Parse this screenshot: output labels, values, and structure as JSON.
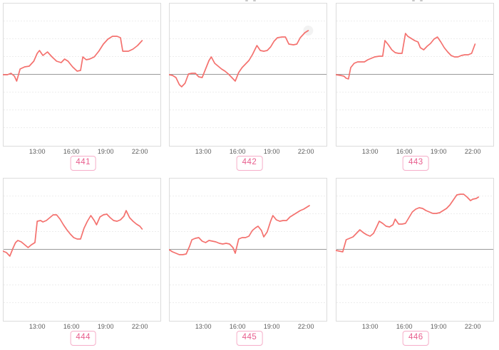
{
  "colors": {
    "background": "#ffffff",
    "line": "#f4716e",
    "zero_line": "#9a9a9a",
    "grid_line": "#ededed",
    "panel_border": "#dcdcdc",
    "tick_text": "#5c5c5c",
    "badge_text": "#e85d8d",
    "badge_border": "#f6aec9",
    "badge_bg": "#ffffff",
    "end_marker_halo": "#e9e9e9"
  },
  "x_axis": {
    "ticks": [
      "13:00",
      "16:00",
      "19:00",
      "22:00"
    ]
  },
  "chart_data": [
    {
      "type": "line",
      "badge": "441",
      "title": "",
      "x_ticks": [
        "13:00",
        "16:00",
        "19:00",
        "22:00"
      ],
      "x_range": [
        10.05,
        23.8
      ],
      "ylim": [
        -100,
        100
      ],
      "zero_line": true,
      "grid": true,
      "legend": "none",
      "end_marker": false,
      "x": [
        10.0,
        10.4,
        10.7,
        11.0,
        11.2,
        11.5,
        11.9,
        12.3,
        12.7,
        13.0,
        13.2,
        13.5,
        13.9,
        14.3,
        14.7,
        15.1,
        15.4,
        15.7,
        16.1,
        16.5,
        16.8,
        17.0,
        17.3,
        17.6,
        18.0,
        18.4,
        18.8,
        19.2,
        19.6,
        20.0,
        20.3,
        20.5,
        21.0,
        21.4,
        21.8,
        22.2
      ],
      "values": [
        0,
        0,
        2,
        -2,
        -9,
        8,
        11,
        12,
        19,
        30,
        34,
        27,
        32,
        25,
        19,
        17,
        22,
        19,
        11,
        5,
        6,
        25,
        21,
        22,
        25,
        33,
        43,
        50,
        54,
        54,
        52,
        33,
        33,
        36,
        41,
        48
      ]
    },
    {
      "type": "line",
      "badge": "442",
      "title": "",
      "x_ticks": [
        "13:00",
        "16:00",
        "19:00",
        "22:00"
      ],
      "x_range": [
        10.05,
        23.8
      ],
      "ylim": [
        -100,
        100
      ],
      "zero_line": true,
      "grid": true,
      "legend": "none",
      "end_marker": true,
      "x": [
        10.0,
        10.3,
        10.6,
        10.9,
        11.1,
        11.4,
        11.7,
        12.0,
        12.3,
        12.6,
        12.9,
        13.2,
        13.5,
        13.7,
        14.0,
        14.3,
        14.6,
        14.9,
        15.2,
        15.5,
        15.8,
        16.1,
        16.4,
        16.7,
        17.0,
        17.3,
        17.7,
        18.0,
        18.3,
        18.6,
        18.9,
        19.2,
        19.5,
        19.9,
        20.2,
        20.5,
        20.9,
        21.2,
        21.5,
        21.9,
        22.2
      ],
      "values": [
        0,
        -1,
        -4,
        -14,
        -17,
        -12,
        1,
        2,
        2,
        -3,
        -4,
        8,
        20,
        25,
        16,
        12,
        8,
        5,
        1,
        -4,
        -9,
        3,
        10,
        15,
        20,
        28,
        41,
        34,
        33,
        34,
        39,
        47,
        52,
        53,
        53,
        43,
        42,
        43,
        52,
        59,
        62
      ]
    },
    {
      "type": "line",
      "badge": "443",
      "title": "",
      "x_ticks": [
        "13:00",
        "16:00",
        "19:00",
        "22:00"
      ],
      "x_range": [
        10.05,
        23.8
      ],
      "ylim": [
        -100,
        100
      ],
      "zero_line": true,
      "grid": true,
      "legend": "none",
      "end_marker": false,
      "x": [
        10.0,
        10.4,
        10.7,
        10.9,
        11.1,
        11.3,
        11.6,
        11.9,
        12.2,
        12.5,
        12.8,
        13.1,
        13.4,
        13.8,
        14.1,
        14.3,
        14.6,
        14.9,
        15.2,
        15.5,
        15.8,
        16.1,
        16.3,
        16.6,
        16.9,
        17.2,
        17.4,
        17.7,
        18.0,
        18.3,
        18.6,
        18.9,
        19.2,
        19.5,
        19.8,
        20.1,
        20.4,
        20.7,
        21.0,
        21.3,
        21.6,
        21.9,
        22.2
      ],
      "values": [
        0,
        -1,
        -2,
        -5,
        -6,
        10,
        16,
        18,
        18,
        18,
        21,
        23,
        25,
        26,
        26,
        48,
        42,
        35,
        31,
        30,
        30,
        58,
        54,
        51,
        48,
        46,
        38,
        35,
        40,
        44,
        50,
        53,
        46,
        38,
        32,
        27,
        25,
        25,
        27,
        28,
        28,
        30,
        43
      ]
    },
    {
      "type": "line",
      "badge": "444",
      "title": "",
      "x_ticks": [
        "13:00",
        "16:00",
        "19:00",
        "22:00"
      ],
      "x_range": [
        10.05,
        23.8
      ],
      "ylim": [
        -100,
        100
      ],
      "zero_line": true,
      "grid": true,
      "legend": "none",
      "end_marker": false,
      "x": [
        10.0,
        10.3,
        10.6,
        10.9,
        11.1,
        11.3,
        11.6,
        11.9,
        12.2,
        12.5,
        12.8,
        13.0,
        13.3,
        13.5,
        13.8,
        14.1,
        14.4,
        14.7,
        15.0,
        15.3,
        15.6,
        15.9,
        16.2,
        16.5,
        16.8,
        17.1,
        17.4,
        17.7,
        18.0,
        18.2,
        18.5,
        18.8,
        19.1,
        19.4,
        19.7,
        20.0,
        20.3,
        20.6,
        20.8,
        21.1,
        21.4,
        21.7,
        22.0,
        22.2
      ],
      "values": [
        -2,
        -4,
        -9,
        3,
        10,
        13,
        11,
        7,
        3,
        7,
        10,
        40,
        41,
        39,
        41,
        45,
        49,
        49,
        43,
        35,
        28,
        22,
        17,
        15,
        15,
        30,
        40,
        48,
        41,
        35,
        46,
        49,
        50,
        45,
        41,
        40,
        42,
        47,
        55,
        45,
        40,
        36,
        33,
        29
      ]
    },
    {
      "type": "line",
      "badge": "445",
      "title": "",
      "x_ticks": [
        "13:00",
        "16:00",
        "19:00",
        "22:00"
      ],
      "x_range": [
        10.05,
        23.8
      ],
      "ylim": [
        -100,
        100
      ],
      "zero_line": true,
      "grid": true,
      "legend": "none",
      "end_marker": false,
      "x": [
        10.0,
        10.3,
        10.6,
        10.9,
        11.2,
        11.5,
        11.8,
        12.0,
        12.3,
        12.6,
        12.9,
        13.2,
        13.5,
        13.8,
        14.1,
        14.4,
        14.7,
        15.0,
        15.3,
        15.6,
        15.8,
        16.1,
        16.4,
        16.7,
        17.0,
        17.3,
        17.6,
        17.8,
        18.1,
        18.3,
        18.6,
        18.9,
        19.1,
        19.4,
        19.7,
        20.0,
        20.3,
        20.6,
        20.9,
        21.2,
        21.5,
        21.8,
        22.1,
        22.3
      ],
      "values": [
        0,
        -3,
        -5,
        -7,
        -7,
        -6,
        5,
        14,
        16,
        17,
        12,
        10,
        13,
        12,
        11,
        9,
        8,
        9,
        8,
        3,
        -5,
        15,
        17,
        17,
        19,
        27,
        31,
        33,
        27,
        18,
        25,
        40,
        48,
        42,
        40,
        41,
        41,
        46,
        49,
        52,
        55,
        57,
        60,
        62
      ]
    },
    {
      "type": "line",
      "badge": "446",
      "title": "",
      "x_ticks": [
        "13:00",
        "16:00",
        "19:00",
        "22:00"
      ],
      "x_range": [
        10.05,
        23.8
      ],
      "ylim": [
        -100,
        100
      ],
      "zero_line": true,
      "grid": true,
      "legend": "none",
      "end_marker": false,
      "x": [
        10.0,
        10.3,
        10.6,
        10.9,
        11.2,
        11.5,
        11.8,
        12.1,
        12.4,
        12.7,
        13.0,
        13.3,
        13.6,
        13.8,
        14.1,
        14.4,
        14.7,
        15.0,
        15.2,
        15.5,
        15.8,
        16.1,
        16.4,
        16.7,
        17.0,
        17.3,
        17.6,
        17.9,
        18.2,
        18.5,
        18.8,
        19.1,
        19.4,
        19.7,
        20.0,
        20.3,
        20.6,
        20.9,
        21.2,
        21.5,
        21.8,
        22.0,
        22.3,
        22.5
      ],
      "values": [
        -1,
        -2,
        -3,
        14,
        16,
        18,
        23,
        28,
        24,
        21,
        19,
        23,
        33,
        40,
        37,
        33,
        32,
        35,
        43,
        36,
        36,
        37,
        45,
        53,
        57,
        59,
        58,
        55,
        53,
        51,
        51,
        52,
        55,
        58,
        63,
        70,
        77,
        78,
        78,
        74,
        69,
        71,
        72,
        74
      ]
    }
  ]
}
